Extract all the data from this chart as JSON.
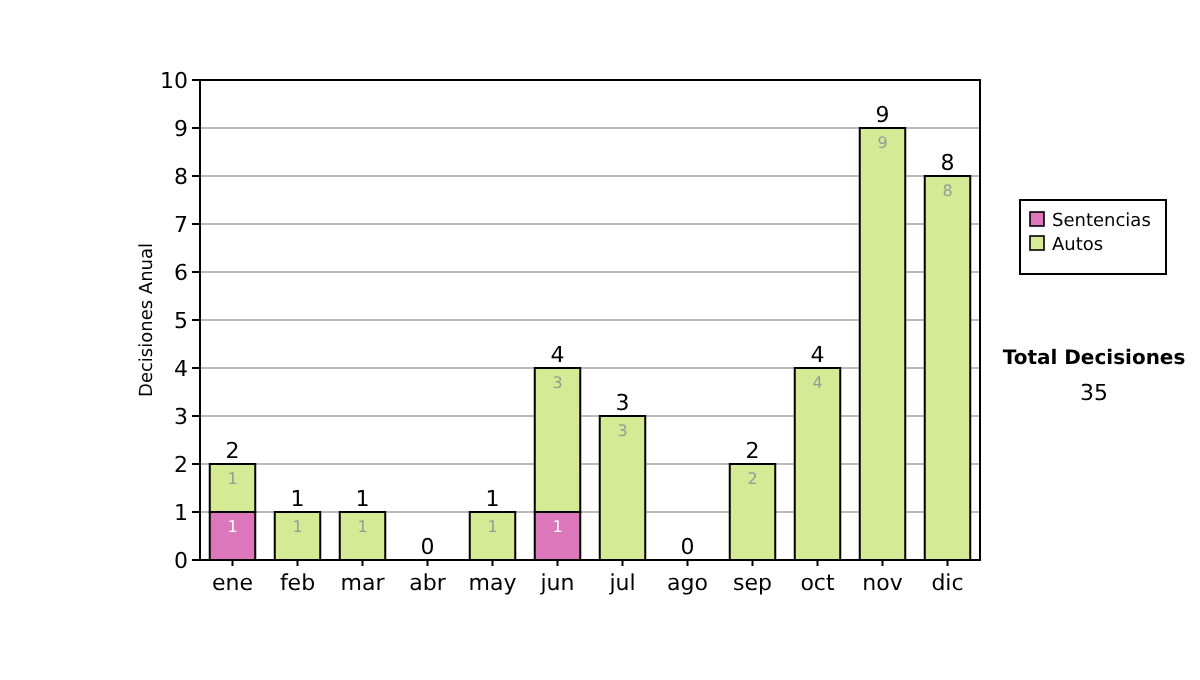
{
  "chart_data": {
    "type": "bar",
    "ylabel": "Decisiones Anual",
    "categories": [
      "ene",
      "feb",
      "mar",
      "abr",
      "may",
      "jun",
      "jul",
      "ago",
      "sep",
      "oct",
      "nov",
      "dic"
    ],
    "stacked": true,
    "series": [
      {
        "name": "Sentencias",
        "color": "#dd77bb",
        "values": [
          1,
          0,
          0,
          0,
          0,
          1,
          0,
          0,
          0,
          0,
          0,
          0
        ],
        "value_labels": [
          "1",
          null,
          null,
          null,
          null,
          "1",
          null,
          null,
          null,
          null,
          null,
          null
        ]
      },
      {
        "name": "Autos",
        "color": "#d4ea94",
        "values": [
          1,
          1,
          1,
          0,
          1,
          3,
          3,
          0,
          2,
          4,
          9,
          8
        ],
        "value_labels": [
          "1",
          "1",
          "1",
          null,
          "1",
          "3",
          "3",
          null,
          "2",
          "4",
          "9",
          "8"
        ]
      }
    ],
    "totals": [
      "2",
      "1",
      "1",
      "0",
      "1",
      "4",
      "3",
      "0",
      "2",
      "4",
      "9",
      "8"
    ],
    "ylim": [
      0,
      10
    ],
    "yticks": [
      0,
      1,
      2,
      3,
      4,
      5,
      6,
      7,
      8,
      9,
      10
    ],
    "grid": "y",
    "legend": "right",
    "annotations": [
      "Total Decisiones",
      "35"
    ]
  }
}
